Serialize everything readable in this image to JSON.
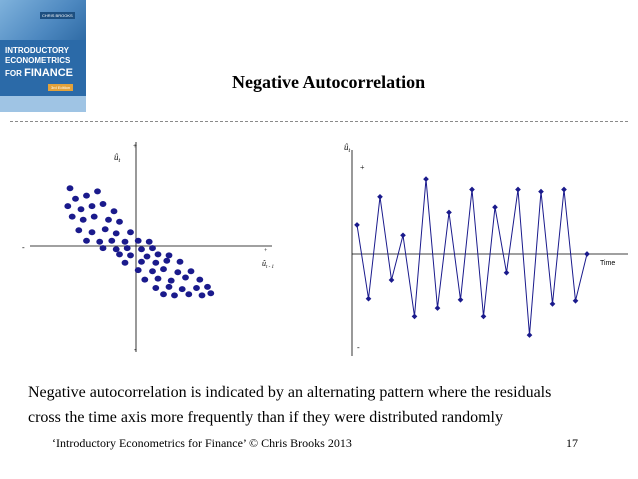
{
  "cover": {
    "author": "CHRIS BROOKS",
    "line1": "INTRODUCTORY",
    "line2": "ECONOMETRICS",
    "line3a": "FOR ",
    "line3b": "FINANCE",
    "edition": "3rd Edition"
  },
  "title": "Negative Autocorrelation",
  "chart_data": [
    {
      "type": "scatter",
      "y_axis_label_base": "û",
      "y_axis_label_sub": "t",
      "x_axis_label_base": "û",
      "x_axis_label_sub": "t - 1",
      "y_top_sign": "+",
      "y_bottom_sign": "-",
      "x_left_sign": "-",
      "x_right_sign": "+",
      "xlim": [
        -1,
        1
      ],
      "ylim": [
        -1,
        1
      ],
      "marker_color": "#1a1a8c",
      "points": [
        [
          -0.6,
          0.55
        ],
        [
          -0.55,
          0.45
        ],
        [
          -0.45,
          0.48
        ],
        [
          -0.35,
          0.52
        ],
        [
          -0.62,
          0.38
        ],
        [
          -0.5,
          0.35
        ],
        [
          -0.4,
          0.38
        ],
        [
          -0.3,
          0.4
        ],
        [
          -0.2,
          0.33
        ],
        [
          -0.58,
          0.28
        ],
        [
          -0.48,
          0.25
        ],
        [
          -0.38,
          0.28
        ],
        [
          -0.25,
          0.25
        ],
        [
          -0.15,
          0.23
        ],
        [
          -0.52,
          0.15
        ],
        [
          -0.4,
          0.13
        ],
        [
          -0.28,
          0.16
        ],
        [
          -0.18,
          0.12
        ],
        [
          -0.05,
          0.13
        ],
        [
          -0.45,
          0.05
        ],
        [
          -0.33,
          0.04
        ],
        [
          -0.22,
          0.05
        ],
        [
          -0.1,
          0.04
        ],
        [
          0.02,
          0.05
        ],
        [
          0.12,
          0.04
        ],
        [
          -0.3,
          -0.02
        ],
        [
          -0.18,
          -0.03
        ],
        [
          -0.08,
          -0.02
        ],
        [
          0.05,
          -0.03
        ],
        [
          0.15,
          -0.02
        ],
        [
          -0.15,
          -0.08
        ],
        [
          -0.05,
          -0.09
        ],
        [
          0.1,
          -0.1
        ],
        [
          0.2,
          -0.08
        ],
        [
          0.3,
          -0.09
        ],
        [
          -0.1,
          -0.16
        ],
        [
          0.05,
          -0.15
        ],
        [
          0.18,
          -0.16
        ],
        [
          0.28,
          -0.14
        ],
        [
          0.4,
          -0.15
        ],
        [
          0.02,
          -0.23
        ],
        [
          0.15,
          -0.24
        ],
        [
          0.25,
          -0.22
        ],
        [
          0.38,
          -0.25
        ],
        [
          0.5,
          -0.24
        ],
        [
          0.08,
          -0.32
        ],
        [
          0.2,
          -0.31
        ],
        [
          0.32,
          -0.33
        ],
        [
          0.45,
          -0.3
        ],
        [
          0.58,
          -0.32
        ],
        [
          0.18,
          -0.4
        ],
        [
          0.3,
          -0.39
        ],
        [
          0.42,
          -0.41
        ],
        [
          0.55,
          -0.4
        ],
        [
          0.65,
          -0.39
        ],
        [
          0.35,
          -0.47
        ],
        [
          0.48,
          -0.46
        ],
        [
          0.6,
          -0.47
        ],
        [
          0.68,
          -0.45
        ],
        [
          0.25,
          -0.46
        ]
      ]
    },
    {
      "type": "line",
      "y_axis_label_base": "û",
      "y_axis_label_sub": "t",
      "xlabel": "Time",
      "y_top_sign": "+",
      "y_bottom_sign": "-",
      "ylim": [
        -1,
        1
      ],
      "line_color": "#1a1a8c",
      "x": [
        1,
        2,
        3,
        4,
        5,
        6,
        7,
        8,
        9,
        10,
        11,
        12,
        13,
        14,
        15,
        16,
        17,
        18,
        19,
        20,
        21
      ],
      "y": [
        0.28,
        -0.43,
        0.55,
        -0.25,
        0.18,
        -0.6,
        0.72,
        -0.52,
        0.4,
        -0.44,
        0.62,
        -0.6,
        0.45,
        -0.18,
        0.62,
        -0.78,
        0.6,
        -0.48,
        0.62,
        -0.45,
        0.0
      ]
    }
  ],
  "description_line1": "Negative autocorrelation is indicated by an alternating pattern where the residuals",
  "description_line2": "cross the time axis more frequently than if they were distributed randomly",
  "footer": "‘Introductory Econometrics for Finance’ © Chris Brooks 2013",
  "page_number": "17"
}
